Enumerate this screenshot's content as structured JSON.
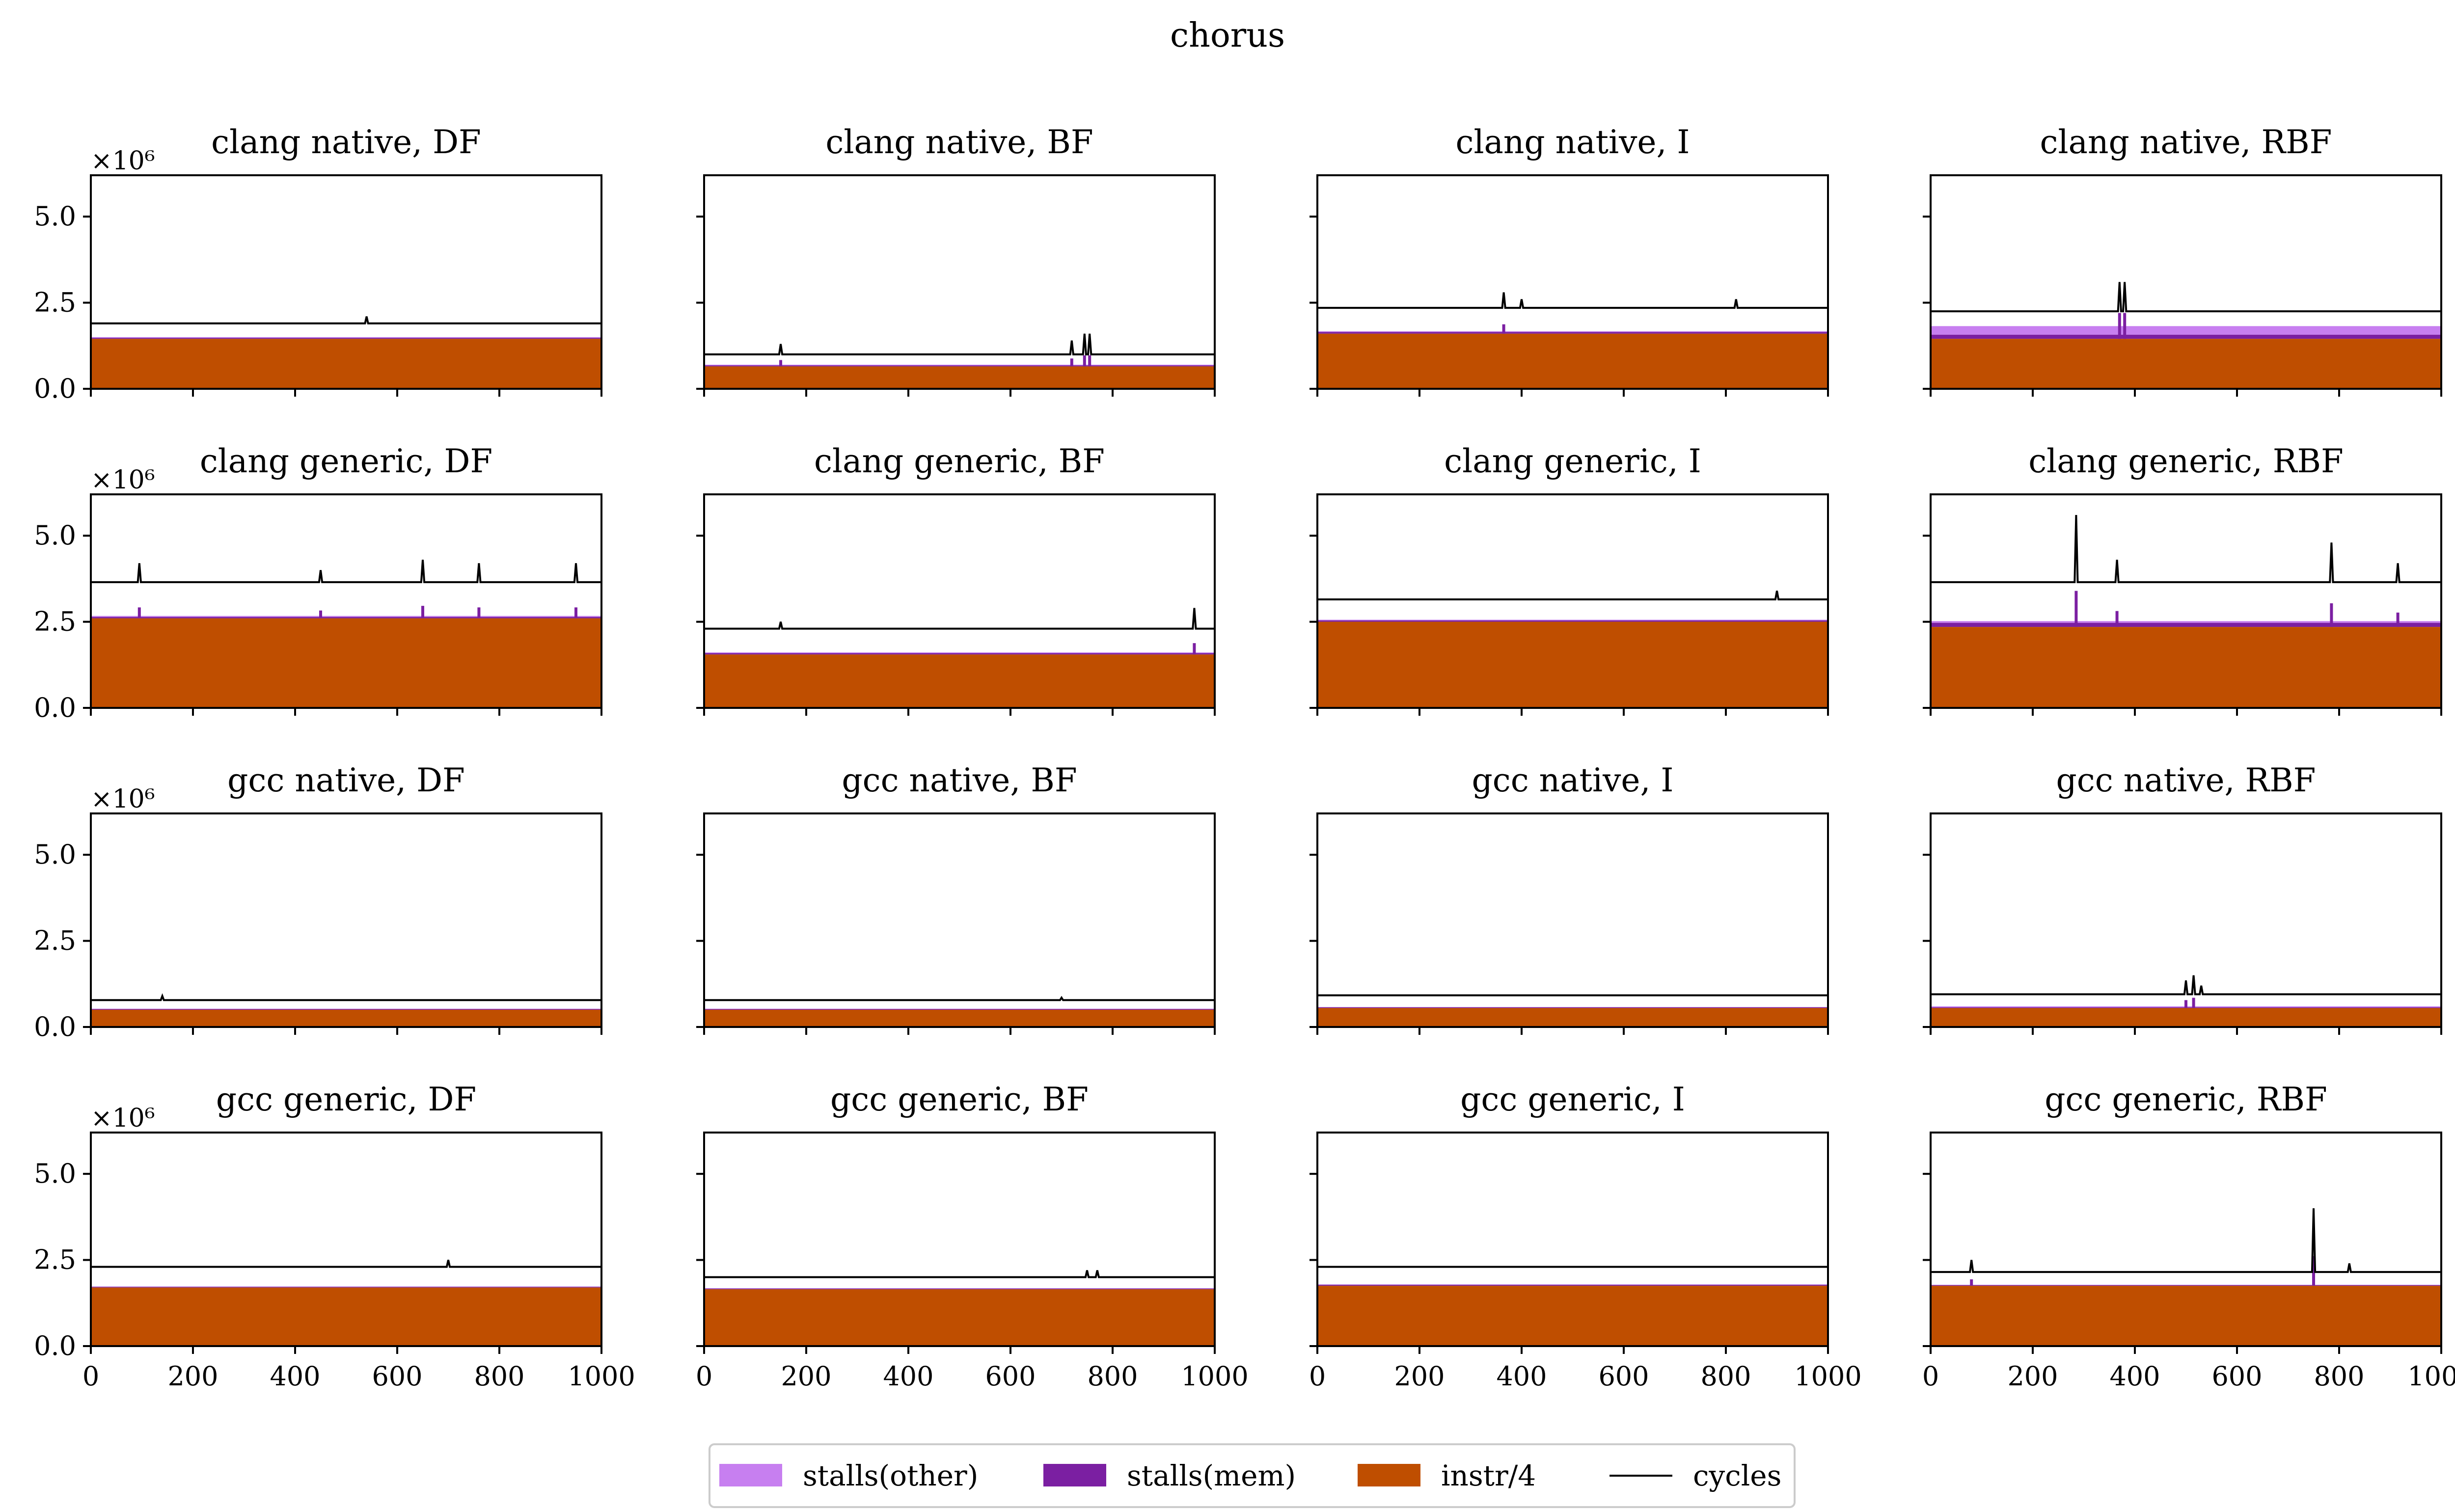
{
  "figure": {
    "title": "chorus",
    "multiplier": "×10⁶"
  },
  "legend": {
    "items": [
      {
        "label": "stalls(other)",
        "color": "#c77ff0",
        "kind": "patch"
      },
      {
        "label": "stalls(mem)",
        "color": "#7b1fa2",
        "kind": "patch"
      },
      {
        "label": "instr/4",
        "color": "#bf4e00",
        "kind": "patch"
      },
      {
        "label": "cycles",
        "color": "#000000",
        "kind": "line"
      }
    ]
  },
  "chart_data": [
    {
      "type": "area",
      "title": "clang native, DF",
      "xlim": [
        0,
        1000
      ],
      "ylim": [
        0,
        6.2
      ],
      "y_scale": "×10⁶",
      "x_ticks": [
        0,
        200,
        400,
        600,
        800,
        1000
      ],
      "y_ticks": [
        "0.0",
        "2.5",
        "5.0"
      ],
      "series": [
        {
          "name": "instr/4",
          "baseline": 1.45
        },
        {
          "name": "stalls(mem)",
          "baseline": 0.03
        },
        {
          "name": "stalls(other)",
          "baseline": 0.02
        },
        {
          "name": "cycles",
          "baseline": 1.9
        }
      ],
      "spikes": [
        {
          "x": 540,
          "cycles": 2.1
        }
      ]
    },
    {
      "type": "area",
      "title": "clang native, BF",
      "xlim": [
        0,
        1000
      ],
      "ylim": [
        0,
        6.2
      ],
      "y_scale": "×10⁶",
      "x_ticks": [
        0,
        200,
        400,
        600,
        800,
        1000
      ],
      "y_ticks": [
        "0.0",
        "2.5",
        "5.0"
      ],
      "series": [
        {
          "name": "instr/4",
          "baseline": 0.65
        },
        {
          "name": "stalls(mem)",
          "baseline": 0.03
        },
        {
          "name": "stalls(other)",
          "baseline": 0.02
        },
        {
          "name": "cycles",
          "baseline": 1.0
        }
      ],
      "spikes": [
        {
          "x": 150,
          "cycles": 1.3
        },
        {
          "x": 720,
          "cycles": 1.4
        },
        {
          "x": 745,
          "cycles": 1.6
        },
        {
          "x": 755,
          "cycles": 1.6
        }
      ]
    },
    {
      "type": "area",
      "title": "clang native, I",
      "xlim": [
        0,
        1000
      ],
      "ylim": [
        0,
        6.2
      ],
      "y_scale": "×10⁶",
      "x_ticks": [
        0,
        200,
        400,
        600,
        800,
        1000
      ],
      "y_ticks": [
        "0.0",
        "2.5",
        "5.0"
      ],
      "series": [
        {
          "name": "instr/4",
          "baseline": 1.6
        },
        {
          "name": "stalls(mem)",
          "baseline": 0.05
        },
        {
          "name": "stalls(other)",
          "baseline": 0.02
        },
        {
          "name": "cycles",
          "baseline": 2.35
        }
      ],
      "spikes": [
        {
          "x": 365,
          "cycles": 2.8
        },
        {
          "x": 400,
          "cycles": 2.6
        },
        {
          "x": 820,
          "cycles": 2.6
        }
      ]
    },
    {
      "type": "area",
      "title": "clang native, RBF",
      "xlim": [
        0,
        1000
      ],
      "ylim": [
        0,
        6.2
      ],
      "y_scale": "×10⁶",
      "x_ticks": [
        0,
        200,
        400,
        600,
        800,
        1000
      ],
      "y_ticks": [
        "0.0",
        "2.5",
        "5.0"
      ],
      "series": [
        {
          "name": "instr/4",
          "baseline": 1.45
        },
        {
          "name": "stalls(mem)",
          "baseline": 0.12
        },
        {
          "name": "stalls(other)",
          "baseline": 0.25
        },
        {
          "name": "cycles",
          "baseline": 2.25
        }
      ],
      "spikes": [
        {
          "x": 370,
          "cycles": 3.1
        },
        {
          "x": 380,
          "cycles": 3.1
        }
      ]
    },
    {
      "type": "area",
      "title": "clang generic, DF",
      "xlim": [
        0,
        1000
      ],
      "ylim": [
        0,
        6.2
      ],
      "y_scale": "×10⁶",
      "x_ticks": [
        0,
        200,
        400,
        600,
        800,
        1000
      ],
      "y_ticks": [
        "0.0",
        "2.5",
        "5.0"
      ],
      "series": [
        {
          "name": "instr/4",
          "baseline": 2.6
        },
        {
          "name": "stalls(mem)",
          "baseline": 0.04
        },
        {
          "name": "stalls(other)",
          "baseline": 0.03
        },
        {
          "name": "cycles",
          "baseline": 3.65
        }
      ],
      "spikes": [
        {
          "x": 95,
          "cycles": 4.2
        },
        {
          "x": 450,
          "cycles": 4.0
        },
        {
          "x": 650,
          "cycles": 4.3
        },
        {
          "x": 760,
          "cycles": 4.2
        },
        {
          "x": 950,
          "cycles": 4.2
        }
      ]
    },
    {
      "type": "area",
      "title": "clang generic, BF",
      "xlim": [
        0,
        1000
      ],
      "ylim": [
        0,
        6.2
      ],
      "y_scale": "×10⁶",
      "x_ticks": [
        0,
        200,
        400,
        600,
        800,
        1000
      ],
      "y_ticks": [
        "0.0",
        "2.5",
        "5.0"
      ],
      "series": [
        {
          "name": "instr/4",
          "baseline": 1.55
        },
        {
          "name": "stalls(mem)",
          "baseline": 0.04
        },
        {
          "name": "stalls(other)",
          "baseline": 0.02
        },
        {
          "name": "cycles",
          "baseline": 2.3
        }
      ],
      "spikes": [
        {
          "x": 150,
          "cycles": 2.5
        },
        {
          "x": 960,
          "cycles": 2.9
        }
      ]
    },
    {
      "type": "area",
      "title": "clang generic, I",
      "xlim": [
        0,
        1000
      ],
      "ylim": [
        0,
        6.2
      ],
      "y_scale": "×10⁶",
      "x_ticks": [
        0,
        200,
        400,
        600,
        800,
        1000
      ],
      "y_ticks": [
        "0.0",
        "2.5",
        "5.0"
      ],
      "series": [
        {
          "name": "instr/4",
          "baseline": 2.5
        },
        {
          "name": "stalls(mem)",
          "baseline": 0.04
        },
        {
          "name": "stalls(other)",
          "baseline": 0.02
        },
        {
          "name": "cycles",
          "baseline": 3.15
        }
      ],
      "spikes": [
        {
          "x": 900,
          "cycles": 3.4
        }
      ]
    },
    {
      "type": "area",
      "title": "clang generic, RBF",
      "xlim": [
        0,
        1000
      ],
      "ylim": [
        0,
        6.2
      ],
      "y_scale": "×10⁶",
      "x_ticks": [
        0,
        200,
        400,
        600,
        800,
        1000
      ],
      "y_ticks": [
        "0.0",
        "2.5",
        "5.0"
      ],
      "series": [
        {
          "name": "instr/4",
          "baseline": 2.35
        },
        {
          "name": "stalls(mem)",
          "baseline": 0.12
        },
        {
          "name": "stalls(other)",
          "baseline": 0.05
        },
        {
          "name": "cycles",
          "baseline": 3.65
        }
      ],
      "spikes": [
        {
          "x": 285,
          "cycles": 5.6
        },
        {
          "x": 365,
          "cycles": 4.3
        },
        {
          "x": 785,
          "cycles": 4.8
        },
        {
          "x": 915,
          "cycles": 4.2
        }
      ]
    },
    {
      "type": "area",
      "title": "gcc native, DF",
      "xlim": [
        0,
        1000
      ],
      "ylim": [
        0,
        6.2
      ],
      "y_scale": "×10⁶",
      "x_ticks": [
        0,
        200,
        400,
        600,
        800,
        1000
      ],
      "y_ticks": [
        "0.0",
        "2.5",
        "5.0"
      ],
      "series": [
        {
          "name": "instr/4",
          "baseline": 0.5
        },
        {
          "name": "stalls(mem)",
          "baseline": 0.02
        },
        {
          "name": "stalls(other)",
          "baseline": 0.01
        },
        {
          "name": "cycles",
          "baseline": 0.78
        }
      ],
      "spikes": [
        {
          "x": 140,
          "cycles": 0.9
        }
      ]
    },
    {
      "type": "area",
      "title": "gcc native, BF",
      "xlim": [
        0,
        1000
      ],
      "ylim": [
        0,
        6.2
      ],
      "y_scale": "×10⁶",
      "x_ticks": [
        0,
        200,
        400,
        600,
        800,
        1000
      ],
      "y_ticks": [
        "0.0",
        "2.5",
        "5.0"
      ],
      "series": [
        {
          "name": "instr/4",
          "baseline": 0.5
        },
        {
          "name": "stalls(mem)",
          "baseline": 0.02
        },
        {
          "name": "stalls(other)",
          "baseline": 0.01
        },
        {
          "name": "cycles",
          "baseline": 0.78
        }
      ],
      "spikes": [
        {
          "x": 700,
          "cycles": 0.85
        }
      ]
    },
    {
      "type": "area",
      "title": "gcc native, I",
      "xlim": [
        0,
        1000
      ],
      "ylim": [
        0,
        6.2
      ],
      "y_scale": "×10⁶",
      "x_ticks": [
        0,
        200,
        400,
        600,
        800,
        1000
      ],
      "y_ticks": [
        "0.0",
        "2.5",
        "5.0"
      ],
      "series": [
        {
          "name": "instr/4",
          "baseline": 0.55
        },
        {
          "name": "stalls(mem)",
          "baseline": 0.02
        },
        {
          "name": "stalls(other)",
          "baseline": 0.01
        },
        {
          "name": "cycles",
          "baseline": 0.92
        }
      ],
      "spikes": []
    },
    {
      "type": "area",
      "title": "gcc native, RBF",
      "xlim": [
        0,
        1000
      ],
      "ylim": [
        0,
        6.2
      ],
      "y_scale": "×10⁶",
      "x_ticks": [
        0,
        200,
        400,
        600,
        800,
        1000
      ],
      "y_ticks": [
        "0.0",
        "2.5",
        "5.0"
      ],
      "series": [
        {
          "name": "instr/4",
          "baseline": 0.55
        },
        {
          "name": "stalls(mem)",
          "baseline": 0.02
        },
        {
          "name": "stalls(other)",
          "baseline": 0.03
        },
        {
          "name": "cycles",
          "baseline": 0.95
        }
      ],
      "spikes": [
        {
          "x": 500,
          "cycles": 1.35
        },
        {
          "x": 515,
          "cycles": 1.5
        },
        {
          "x": 530,
          "cycles": 1.2
        }
      ]
    },
    {
      "type": "area",
      "title": "gcc generic, DF",
      "xlim": [
        0,
        1000
      ],
      "ylim": [
        0,
        6.2
      ],
      "y_scale": "×10⁶",
      "x_ticks": [
        0,
        200,
        400,
        600,
        800,
        1000
      ],
      "y_ticks": [
        "0.0",
        "2.5",
        "5.0"
      ],
      "series": [
        {
          "name": "instr/4",
          "baseline": 1.7
        },
        {
          "name": "stalls(mem)",
          "baseline": 0.02
        },
        {
          "name": "stalls(other)",
          "baseline": 0.01
        },
        {
          "name": "cycles",
          "baseline": 2.3
        }
      ],
      "spikes": [
        {
          "x": 700,
          "cycles": 2.5
        }
      ]
    },
    {
      "type": "area",
      "title": "gcc generic, BF",
      "xlim": [
        0,
        1000
      ],
      "ylim": [
        0,
        6.2
      ],
      "y_scale": "×10⁶",
      "x_ticks": [
        0,
        200,
        400,
        600,
        800,
        1000
      ],
      "y_ticks": [
        "0.0",
        "2.5",
        "5.0"
      ],
      "series": [
        {
          "name": "instr/4",
          "baseline": 1.65
        },
        {
          "name": "stalls(mem)",
          "baseline": 0.02
        },
        {
          "name": "stalls(other)",
          "baseline": 0.01
        },
        {
          "name": "cycles",
          "baseline": 2.0
        }
      ],
      "spikes": [
        {
          "x": 750,
          "cycles": 2.2
        },
        {
          "x": 770,
          "cycles": 2.2
        }
      ]
    },
    {
      "type": "area",
      "title": "gcc generic, I",
      "xlim": [
        0,
        1000
      ],
      "ylim": [
        0,
        6.2
      ],
      "y_scale": "×10⁶",
      "x_ticks": [
        0,
        200,
        400,
        600,
        800,
        1000
      ],
      "y_ticks": [
        "0.0",
        "2.5",
        "5.0"
      ],
      "series": [
        {
          "name": "instr/4",
          "baseline": 1.75
        },
        {
          "name": "stalls(mem)",
          "baseline": 0.03
        },
        {
          "name": "stalls(other)",
          "baseline": 0.01
        },
        {
          "name": "cycles",
          "baseline": 2.3
        }
      ],
      "spikes": []
    },
    {
      "type": "area",
      "title": "gcc generic, RBF",
      "xlim": [
        0,
        1000
      ],
      "ylim": [
        0,
        6.2
      ],
      "y_scale": "×10⁶",
      "x_ticks": [
        0,
        200,
        400,
        600,
        800,
        1000
      ],
      "y_ticks": [
        "0.0",
        "2.5",
        "5.0"
      ],
      "series": [
        {
          "name": "instr/4",
          "baseline": 1.75
        },
        {
          "name": "stalls(mem)",
          "baseline": 0.02
        },
        {
          "name": "stalls(other)",
          "baseline": 0.01
        },
        {
          "name": "cycles",
          "baseline": 2.15
        }
      ],
      "spikes": [
        {
          "x": 80,
          "cycles": 2.5
        },
        {
          "x": 750,
          "cycles": 4.0
        },
        {
          "x": 820,
          "cycles": 2.4
        }
      ]
    }
  ]
}
